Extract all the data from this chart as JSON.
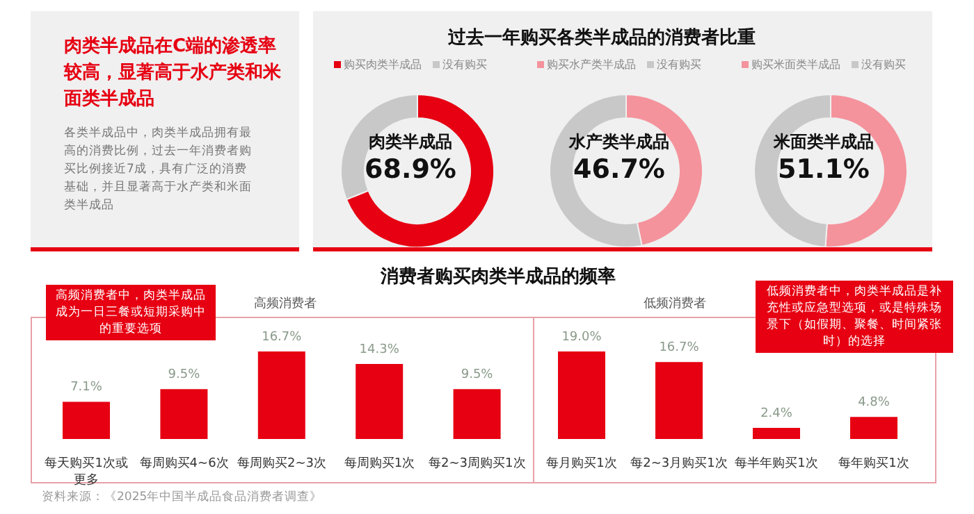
{
  "chart_data": [
    {
      "type": "other",
      "title": "肉类半成品在C端的渗透率较高，显著高于水产类和米面类半成品",
      "subtitle": "各类半成品中，肉类半成品拥有最高的消费比例，过去一年消费者购买比例接近7成，具有广泛的消费基础，并且显著高于水产类和米面类半成品"
    },
    {
      "type": "donut",
      "title": "过去一年购买各类半成品的消费者比重",
      "categories": [
        "购买肉类半成品",
        "没有购买"
      ],
      "values": [
        68.9,
        31.1
      ],
      "colors": [
        "#e60012",
        "#c8c8c8"
      ],
      "annotations": [
        "肉类半成品",
        "68.9%"
      ],
      "legend": "top"
    },
    {
      "type": "donut",
      "categories": [
        "购买水产类半成品",
        "没有购买"
      ],
      "values": [
        46.7,
        53.3
      ],
      "colors": [
        "#f4939c",
        "#c8c8c8"
      ],
      "annotations": [
        "水产类半成品",
        "46.7%"
      ],
      "legend": "top"
    },
    {
      "type": "donut",
      "categories": [
        "购买米面类半成品",
        "没有购买"
      ],
      "values": [
        51.1,
        48.9
      ],
      "colors": [
        "#f4939c",
        "#c8c8c8"
      ],
      "annotations": [
        "米面类半成品",
        "51.1%"
      ],
      "legend": "top"
    },
    {
      "type": "bar",
      "title": "消费者购买肉类半成品的频率",
      "subtitle": "高频消费者",
      "categories": [
        "每天购买1次或更多",
        "每周购买4~6次",
        "每周购买2~3次",
        "每周购买1次",
        "每2~3周购买1次"
      ],
      "values": [
        7.1,
        9.5,
        16.7,
        14.3,
        9.5
      ],
      "color": "#e60012",
      "data_labels": true,
      "value_labels": [
        "7.1%",
        "9.5%",
        "16.7%",
        "14.3%",
        "9.5%"
      ],
      "annotations": [
        "高频消费者中，肉类半成品成为一日三餐或短期采购中的重要选项",
        "资料来源：《2025年中国半成品食品消费者调查》"
      ]
    },
    {
      "type": "bar",
      "subtitle": "低频消费者",
      "categories": [
        "每月购买1次",
        "每2~3月购买1次",
        "每半年购买1次",
        "每年购买1次"
      ],
      "values": [
        19.0,
        16.7,
        2.4,
        4.8
      ],
      "color": "#e60012",
      "data_labels": true,
      "value_labels": [
        "19.0%",
        "16.7%",
        "2.4%",
        "4.8%"
      ],
      "annotations": [
        "低频消费者中，肉类半成品是补充性或应急型选项，或是特殊场景下（如假期、聚餐、时间紧张时）的选择"
      ]
    }
  ]
}
